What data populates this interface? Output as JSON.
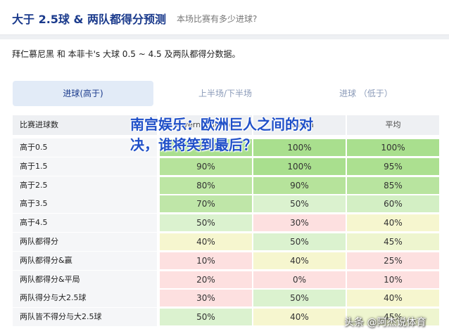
{
  "header": {
    "title": "大于 2.5球 & 两队都得分预测",
    "subtitle": "本场比赛有多少进球?"
  },
  "description": "拜仁慕尼黑 和 本菲卡's 大球 0.5 ~ 4.5 及两队都得分数据。",
  "tabs": [
    {
      "label": "进球(高于)",
      "active": true
    },
    {
      "label": "上半场/下半场",
      "active": false
    },
    {
      "label": "进球 （低于）",
      "active": false
    }
  ],
  "table": {
    "columns": [
      "比赛进球数",
      "Bayern München",
      "Benfica",
      "平均"
    ],
    "rows": [
      {
        "label": "高于0.5",
        "values": [
          "100%",
          "100%",
          "100%"
        ],
        "colors": [
          "#a9df8e",
          "#a9df8e",
          "#a9df8e"
        ]
      },
      {
        "label": "高于1.5",
        "values": [
          "90%",
          "100%",
          "95%"
        ],
        "colors": [
          "#b6e39b",
          "#a9df8e",
          "#ace090"
        ]
      },
      {
        "label": "高于2.5",
        "values": [
          "80%",
          "90%",
          "85%"
        ],
        "colors": [
          "#bde6a4",
          "#b6e39b",
          "#b8e49f"
        ]
      },
      {
        "label": "高于3.5",
        "values": [
          "70%",
          "50%",
          "60%"
        ],
        "colors": [
          "#bfe6a8",
          "#dbf2cf",
          "#d3efc4"
        ]
      },
      {
        "label": "高于4.5",
        "values": [
          "50%",
          "30%",
          "40%"
        ],
        "colors": [
          "#dbf2cf",
          "#fde0e0",
          "#f6f6cf"
        ]
      },
      {
        "label": "两队都得分",
        "values": [
          "40%",
          "50%",
          "45%"
        ],
        "colors": [
          "#f6f6cf",
          "#dbf2cf",
          "#eef5cf"
        ]
      },
      {
        "label": "两队都得分&赢",
        "values": [
          "10%",
          "40%",
          "25%"
        ],
        "colors": [
          "#fde0e0",
          "#f6f6cf",
          "#fde0e0"
        ]
      },
      {
        "label": "两队都得分&平局",
        "values": [
          "20%",
          "0%",
          "10%"
        ],
        "colors": [
          "#fde0e0",
          "#fde0e0",
          "#fde0e0"
        ]
      },
      {
        "label": "两队得分与大2.5球",
        "values": [
          "30%",
          "50%",
          "40%"
        ],
        "colors": [
          "#fde0e0",
          "#dbf2cf",
          "#f6f6cf"
        ]
      },
      {
        "label": "两队皆不得分与大2.5球",
        "values": [
          "50%",
          "40%",
          "45%"
        ],
        "colors": [
          "#dbf2cf",
          "#f6f6cf",
          "#eef5cf"
        ]
      }
    ]
  },
  "overlay_headline": "南宫娱乐：欧洲巨人之间的对决，谁将笑到最后？",
  "watermark": "头条 @阿杰说体育"
}
